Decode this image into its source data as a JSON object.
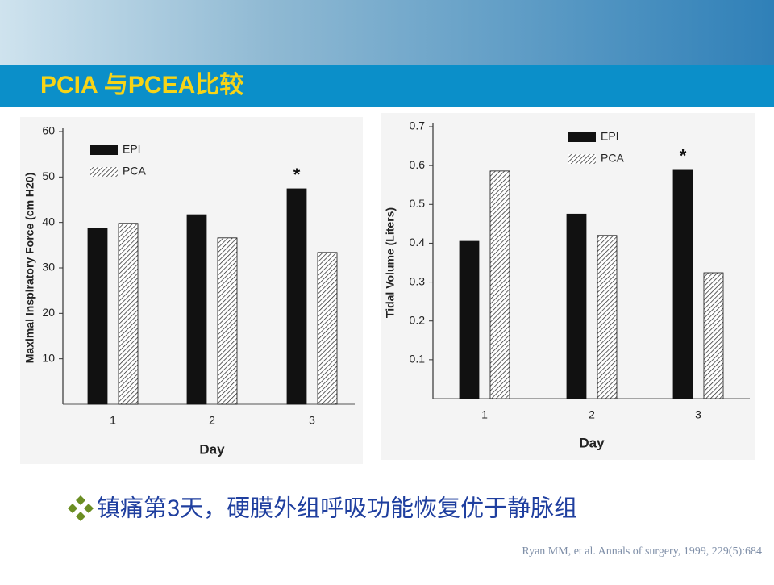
{
  "slide": {
    "title": "PCIA 与PCEA比较",
    "bullet": "镇痛第3天，硬膜外组呼吸功能恢复优于静脉组",
    "citation": "Ryan MM, et al. Annals of surgery, 1999, 229(5):684"
  },
  "chart_data": [
    {
      "type": "bar",
      "y_label": "Maximal Inspiratory Force (cm H20)",
      "x_label": "Day",
      "categories": [
        "1",
        "2",
        "3"
      ],
      "series": [
        {
          "name": "EPI",
          "color": "#111111",
          "values": [
            38.7,
            41.7,
            47.4
          ]
        },
        {
          "name": "PCA",
          "color": "#111111",
          "pattern": "hatch",
          "values": [
            39.8,
            36.6,
            33.4
          ]
        }
      ],
      "ylim": [
        0,
        60
      ],
      "yticks": [
        10,
        20,
        30,
        40,
        50,
        60
      ],
      "annotations": [
        {
          "text": "*",
          "category": "3",
          "series": "EPI"
        }
      ]
    },
    {
      "type": "bar",
      "y_label": "Tidal Volume (Liters)",
      "x_label": "Day",
      "categories": [
        "1",
        "2",
        "3"
      ],
      "series": [
        {
          "name": "EPI",
          "color": "#111111",
          "values": [
            0.405,
            0.475,
            0.588
          ]
        },
        {
          "name": "PCA",
          "color": "#111111",
          "pattern": "hatch",
          "values": [
            0.586,
            0.42,
            0.324
          ]
        }
      ],
      "ylim": [
        0,
        0.7
      ],
      "yticks": [
        0.1,
        0.2,
        0.3,
        0.4,
        0.5,
        0.6,
        0.7
      ],
      "annotations": [
        {
          "text": "*",
          "category": "3",
          "series": "EPI"
        }
      ]
    }
  ]
}
